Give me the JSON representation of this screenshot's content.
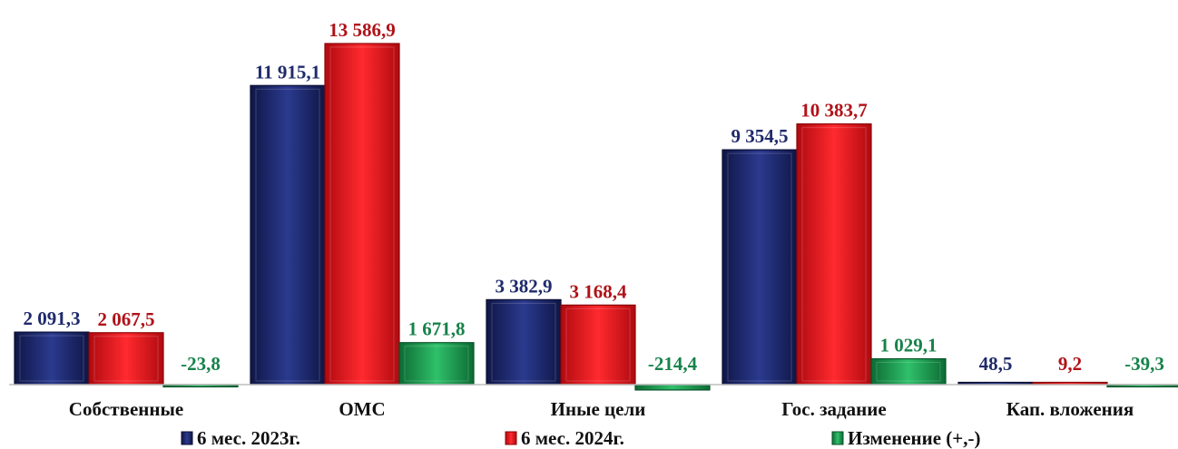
{
  "chart_data": {
    "type": "bar",
    "categories": [
      "Собственные",
      "ОМС",
      "Иные цели",
      "Гос. задание",
      "Кап. вложения"
    ],
    "series": [
      {
        "name": "6 мес. 2023г.",
        "color": "#1f2a6b",
        "values": [
          2091.3,
          11915.1,
          3382.9,
          9354.5,
          48.5
        ],
        "labels": [
          "2 091,3",
          "11 915,1",
          "3 382,9",
          "9 354,5",
          "48,5"
        ]
      },
      {
        "name": "6 мес. 2024г.",
        "color": "#e8141b",
        "values": [
          2067.5,
          13586.9,
          3168.4,
          10383.7,
          9.2
        ],
        "labels": [
          "2 067,5",
          "13 586,9",
          "3 168,4",
          "10 383,7",
          "9,2"
        ]
      },
      {
        "name": "Изменение (+,-)",
        "color": "#1a9a4a",
        "values": [
          -23.8,
          1671.8,
          -214.4,
          1029.1,
          -39.3
        ],
        "labels": [
          "-23,8",
          "1 671,8",
          "-214,4",
          "1 029,1",
          "-39,3"
        ]
      }
    ],
    "label_colors": [
      "#1f2a6b",
      "#b01218",
      "#17824a"
    ],
    "legend_position": "bottom",
    "grid": false
  }
}
